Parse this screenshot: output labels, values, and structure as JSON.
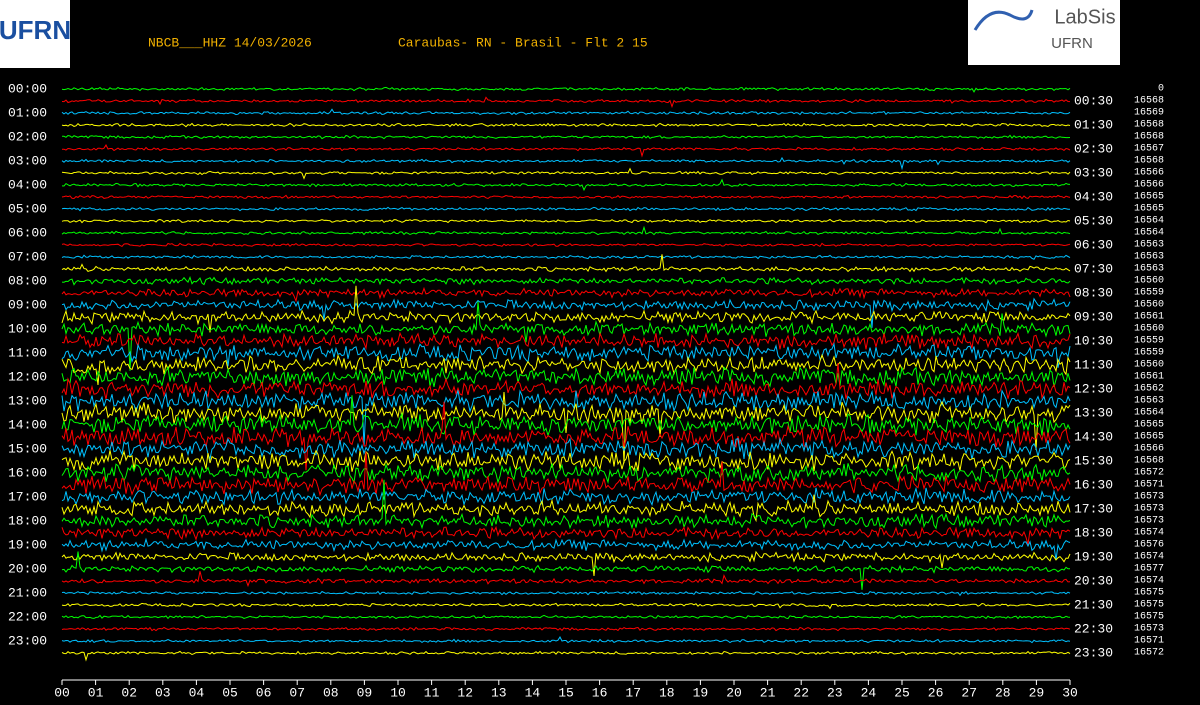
{
  "chart_data": {
    "type": "helicorder",
    "title": "NBCB___HHZ 14/03/2026",
    "subtitle": "Caraubas- RN - Brasil - Flt 2 15",
    "logo_left": "UFRN",
    "logo_right": {
      "title": "LabSis",
      "subtitle": "UFRN"
    },
    "left_labels": [
      "00:00",
      "01:00",
      "02:00",
      "03:00",
      "04:00",
      "05:00",
      "06:00",
      "07:00",
      "08:00",
      "09:00",
      "10:00",
      "11:00",
      "12:00",
      "13:00",
      "14:00",
      "15:00",
      "16:00",
      "17:00",
      "18:00",
      "19:00",
      "20:00",
      "21:00",
      "22:00",
      "23:00"
    ],
    "right_labels": [
      "00:30",
      "01:30",
      "02:30",
      "03:30",
      "04:30",
      "05:30",
      "06:30",
      "07:30",
      "08:30",
      "09:30",
      "10:30",
      "11:30",
      "12:30",
      "13:30",
      "14:30",
      "15:30",
      "16:30",
      "17:30",
      "18:30",
      "19:30",
      "20:30",
      "21:30",
      "22:30",
      "23:30"
    ],
    "offsets": [
      0,
      16568,
      16569,
      16568,
      16568,
      16567,
      16568,
      16566,
      16566,
      16565,
      16565,
      16564,
      16564,
      16563,
      16563,
      16563,
      16560,
      16559,
      16560,
      16561,
      16560,
      16559,
      16559,
      16560,
      16561,
      16562,
      16563,
      16564,
      16565,
      16565,
      16566,
      16568,
      16572,
      16571,
      16573,
      16573,
      16573,
      16574,
      16576,
      16574,
      16577,
      16574,
      16575,
      16575,
      16575,
      16573,
      16571,
      16572
    ],
    "xlim": [
      0,
      30
    ],
    "xticks": [
      {
        "value": 0,
        "label": "00"
      },
      {
        "value": 1,
        "label": "01"
      },
      {
        "value": 2,
        "label": "02"
      },
      {
        "value": 3,
        "label": "03"
      },
      {
        "value": 4,
        "label": "04"
      },
      {
        "value": 5,
        "label": "05"
      },
      {
        "value": 6,
        "label": "06"
      },
      {
        "value": 7,
        "label": "07"
      },
      {
        "value": 8,
        "label": "08"
      },
      {
        "value": 9,
        "label": "09"
      },
      {
        "value": 10,
        "label": "10"
      },
      {
        "value": 11,
        "label": "11"
      },
      {
        "value": 12,
        "label": "12"
      },
      {
        "value": 13,
        "label": "13"
      },
      {
        "value": 14,
        "label": "14"
      },
      {
        "value": 15,
        "label": "15"
      },
      {
        "value": 16,
        "label": "16"
      },
      {
        "value": 17,
        "label": "17"
      },
      {
        "value": 18,
        "label": "18"
      },
      {
        "value": 19,
        "label": "19"
      },
      {
        "value": 20,
        "label": "20"
      },
      {
        "value": 21,
        "label": "21"
      },
      {
        "value": 22,
        "label": "22"
      },
      {
        "value": 23,
        "label": "23"
      },
      {
        "value": 24,
        "label": "24"
      },
      {
        "value": 25,
        "label": "25"
      },
      {
        "value": 26,
        "label": "26"
      },
      {
        "value": 27,
        "label": "27"
      },
      {
        "value": 28,
        "label": "28"
      },
      {
        "value": 29,
        "label": "29"
      },
      {
        "value": 30,
        "label": "30"
      }
    ],
    "colors": [
      "#00ff00",
      "#ff0000",
      "#00c0ff",
      "#ffff00"
    ]
  }
}
